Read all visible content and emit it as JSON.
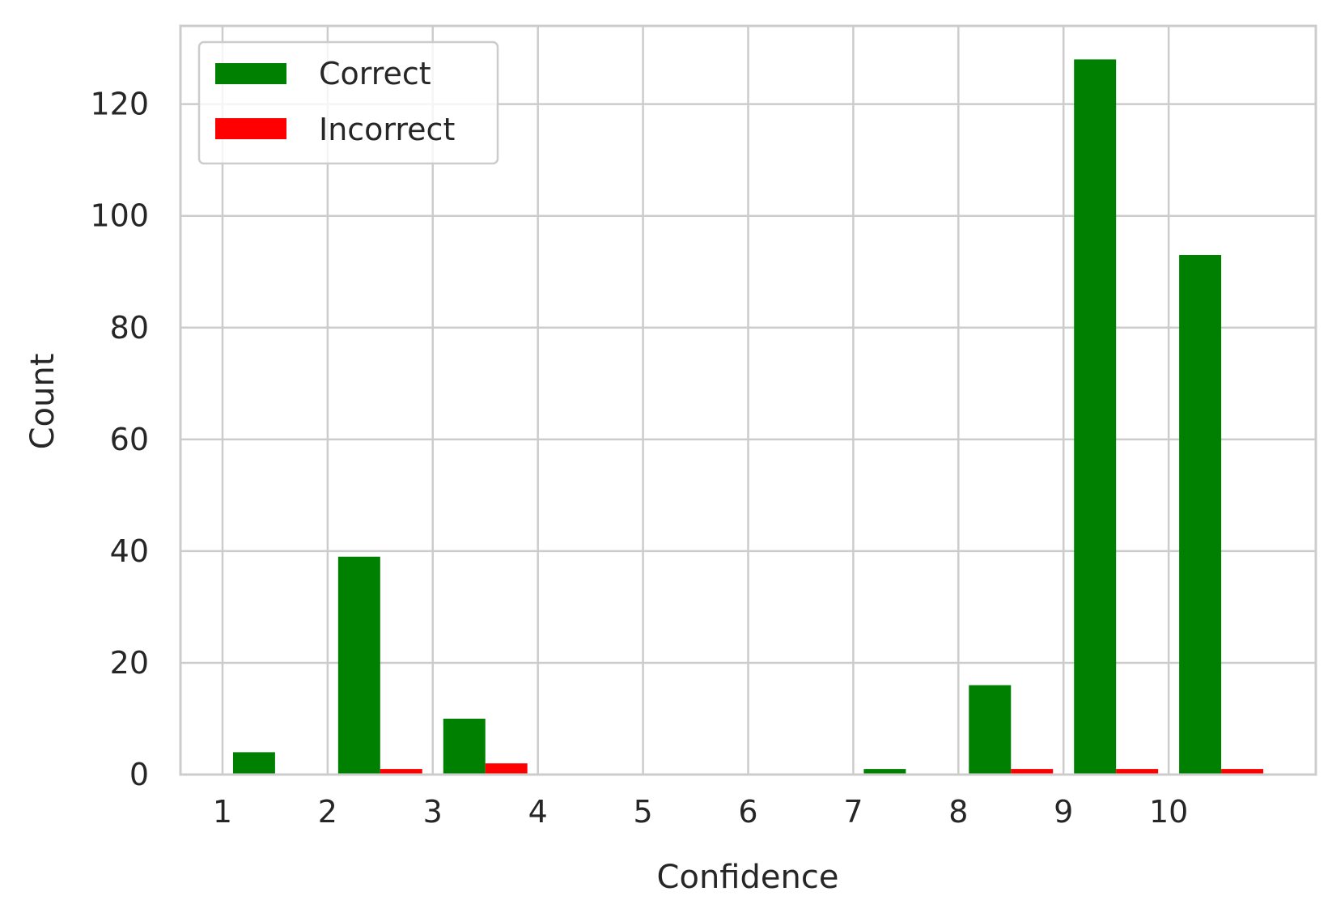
{
  "chart_data": {
    "type": "bar",
    "xlabel": "Confidence",
    "ylabel": "Count",
    "xlim": [
      0.6,
      11.4
    ],
    "ylim": [
      0,
      134
    ],
    "x_ticks": [
      1,
      2,
      3,
      4,
      5,
      6,
      7,
      8,
      9,
      10
    ],
    "x_tick_labels": [
      "1",
      "2",
      "3",
      "4",
      "5",
      "6",
      "7",
      "8",
      "9",
      "10"
    ],
    "y_ticks": [
      0,
      20,
      40,
      60,
      80,
      100,
      120
    ],
    "y_tick_labels": [
      "0",
      "20",
      "40",
      "60",
      "80",
      "100",
      "120"
    ],
    "grid": true,
    "legend_position": "upper-left",
    "bars": [
      {
        "left": 1.1,
        "width": 0.4,
        "series": 0,
        "value": 4
      },
      {
        "left": 2.1,
        "width": 0.4,
        "series": 0,
        "value": 39
      },
      {
        "left": 2.5,
        "width": 0.4,
        "series": 1,
        "value": 1
      },
      {
        "left": 3.1,
        "width": 0.4,
        "series": 0,
        "value": 10
      },
      {
        "left": 3.5,
        "width": 0.4,
        "series": 1,
        "value": 2
      },
      {
        "left": 7.1,
        "width": 0.4,
        "series": 0,
        "value": 1
      },
      {
        "left": 8.1,
        "width": 0.4,
        "series": 0,
        "value": 16
      },
      {
        "left": 8.5,
        "width": 0.4,
        "series": 1,
        "value": 1
      },
      {
        "left": 9.1,
        "width": 0.4,
        "series": 0,
        "value": 128
      },
      {
        "left": 9.5,
        "width": 0.4,
        "series": 1,
        "value": 1
      },
      {
        "left": 10.1,
        "width": 0.4,
        "series": 0,
        "value": 93
      },
      {
        "left": 10.5,
        "width": 0.4,
        "series": 1,
        "value": 1
      }
    ],
    "series": [
      {
        "name": "Correct",
        "color": "#008000"
      },
      {
        "name": "Incorrect",
        "color": "#ff0000"
      }
    ]
  }
}
